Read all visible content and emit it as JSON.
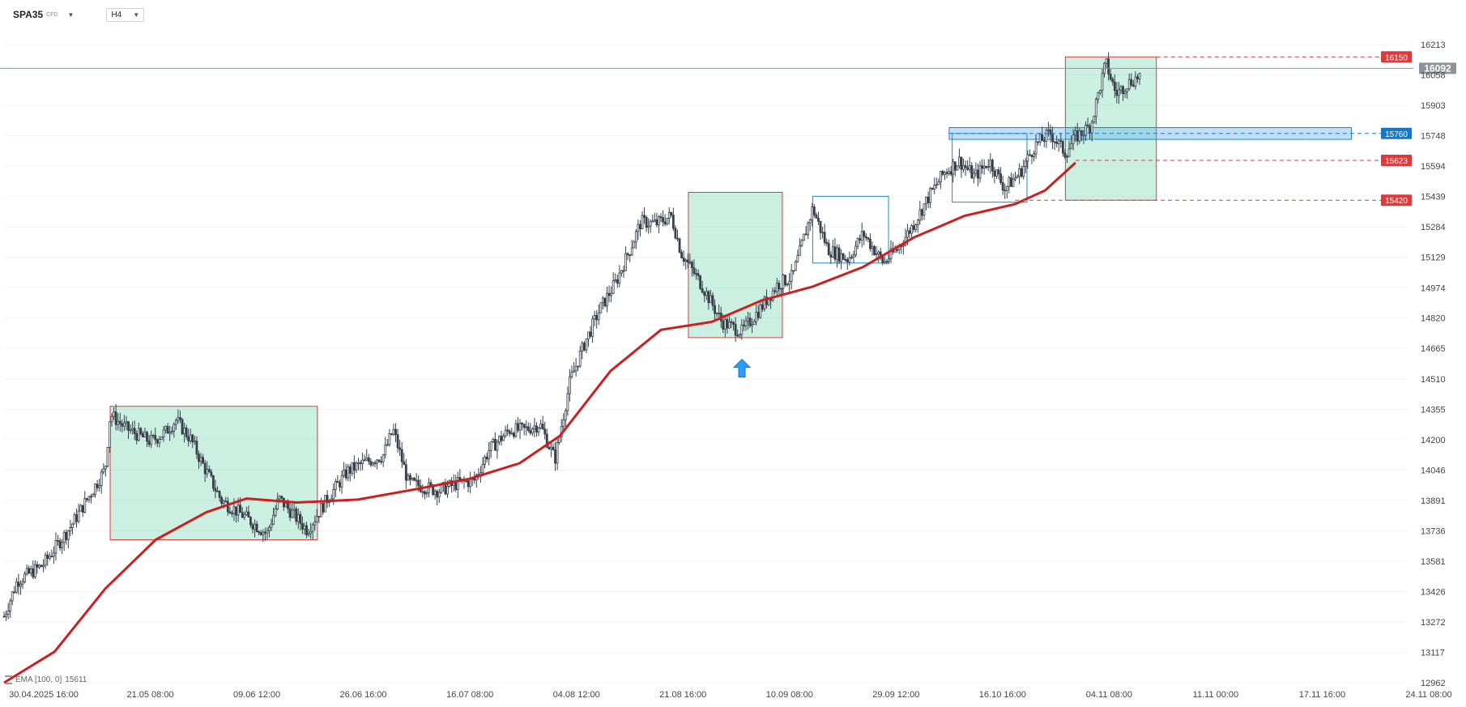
{
  "toolbar": {
    "symbol": "SPA35",
    "symbol_type": "CFD",
    "timeframe": "H4"
  },
  "indicator": {
    "label": "EMA [100, 0]",
    "value": "15611"
  },
  "chart_data": {
    "type": "candlestick",
    "ylim": [
      12962,
      16213
    ],
    "y_ticks": [
      16213,
      16058,
      15903,
      15748,
      15594,
      15439,
      15284,
      15129,
      14974,
      14820,
      14665,
      14510,
      14355,
      14200,
      14046,
      13891,
      13736,
      13581,
      13426,
      13272,
      13117,
      12962
    ],
    "x_ticks": [
      "30.04.2025 16:00",
      "21.05 08:00",
      "09.06 12:00",
      "26.06 16:00",
      "16.07 08:00",
      "04.08 12:00",
      "21.08 16:00",
      "10.09 08:00",
      "29.09 12:00",
      "16.10 16:00",
      "04.11 08:00",
      "11.11 00:00",
      "17.11 16:00",
      "24.11 08:00"
    ],
    "series": [
      {
        "indicator": "EMA [100, 0]",
        "color": "#cc1f1f",
        "points": [
          [
            0,
            12962
          ],
          [
            0.05,
            13120
          ],
          [
            0.1,
            13440
          ],
          [
            0.15,
            13690
          ],
          [
            0.2,
            13830
          ],
          [
            0.24,
            13900
          ],
          [
            0.29,
            13880
          ],
          [
            0.35,
            13895
          ],
          [
            0.41,
            13950
          ],
          [
            0.46,
            14000
          ],
          [
            0.51,
            14080
          ],
          [
            0.55,
            14220
          ],
          [
            0.6,
            14550
          ],
          [
            0.65,
            14760
          ],
          [
            0.7,
            14800
          ],
          [
            0.75,
            14910
          ],
          [
            0.8,
            14980
          ],
          [
            0.85,
            15080
          ],
          [
            0.9,
            15230
          ],
          [
            0.95,
            15340
          ],
          [
            1.0,
            15400
          ],
          [
            1.03,
            15470
          ],
          [
            1.06,
            15611
          ]
        ]
      }
    ],
    "price_path": [
      [
        0,
        13300
      ],
      [
        0.013,
        13480
      ],
      [
        0.038,
        13560
      ],
      [
        0.065,
        13750
      ],
      [
        0.085,
        13920
      ],
      [
        0.1,
        14050
      ],
      [
        0.105,
        14330
      ],
      [
        0.12,
        14260
      ],
      [
        0.145,
        14190
      ],
      [
        0.16,
        14240
      ],
      [
        0.17,
        14300
      ],
      [
        0.185,
        14200
      ],
      [
        0.195,
        14090
      ],
      [
        0.215,
        13890
      ],
      [
        0.235,
        13820
      ],
      [
        0.26,
        13720
      ],
      [
        0.272,
        13900
      ],
      [
        0.3,
        13740
      ],
      [
        0.32,
        13900
      ],
      [
        0.34,
        14040
      ],
      [
        0.355,
        14080
      ],
      [
        0.375,
        14120
      ],
      [
        0.385,
        14250
      ],
      [
        0.4,
        13980
      ],
      [
        0.43,
        13940
      ],
      [
        0.45,
        13980
      ],
      [
        0.465,
        13990
      ],
      [
        0.48,
        14150
      ],
      [
        0.5,
        14250
      ],
      [
        0.515,
        14250
      ],
      [
        0.53,
        14280
      ],
      [
        0.545,
        14100
      ],
      [
        0.56,
        14500
      ],
      [
        0.575,
        14700
      ],
      [
        0.59,
        14870
      ],
      [
        0.605,
        15000
      ],
      [
        0.62,
        15180
      ],
      [
        0.63,
        15310
      ],
      [
        0.645,
        15300
      ],
      [
        0.66,
        15340
      ],
      [
        0.67,
        15150
      ],
      [
        0.69,
        14990
      ],
      [
        0.71,
        14800
      ],
      [
        0.73,
        14750
      ],
      [
        0.75,
        14880
      ],
      [
        0.765,
        14990
      ],
      [
        0.78,
        15030
      ],
      [
        0.8,
        15380
      ],
      [
        0.815,
        15170
      ],
      [
        0.835,
        15120
      ],
      [
        0.85,
        15250
      ],
      [
        0.87,
        15100
      ],
      [
        0.885,
        15180
      ],
      [
        0.9,
        15300
      ],
      [
        0.915,
        15440
      ],
      [
        0.93,
        15560
      ],
      [
        0.945,
        15620
      ],
      [
        0.96,
        15540
      ],
      [
        0.975,
        15620
      ],
      [
        0.99,
        15480
      ],
      [
        1.005,
        15560
      ],
      [
        1.02,
        15700
      ],
      [
        1.035,
        15760
      ],
      [
        1.05,
        15660
      ],
      [
        1.06,
        15740
      ],
      [
        1.075,
        15800
      ],
      [
        1.09,
        16120
      ],
      [
        1.1,
        15960
      ],
      [
        1.11,
        16010
      ],
      [
        1.125,
        16060
      ]
    ],
    "price_levels": [
      {
        "label": "16150",
        "value": 16150,
        "color": "#e0393b",
        "style": "dashed"
      },
      {
        "label": "16092",
        "value": 16092,
        "color": "#8d9499",
        "style": "solid"
      },
      {
        "label": "15760",
        "value": 15760,
        "color": "#1378c8",
        "style": "dashed"
      },
      {
        "label": "15623",
        "value": 15623,
        "color": "#e0393b",
        "style": "dashed"
      },
      {
        "label": "15420",
        "value": 15420,
        "color": "#e0393b",
        "style": "dashed"
      }
    ],
    "annotations": [
      {
        "kind": "box",
        "style": "green",
        "x": [
          0.105,
          0.31
        ],
        "y": [
          13690,
          14370
        ]
      },
      {
        "kind": "box",
        "style": "green",
        "x": [
          0.677,
          0.77
        ],
        "y": [
          14720,
          15460
        ]
      },
      {
        "kind": "box",
        "style": "blue",
        "x": [
          0.8,
          0.875
        ],
        "y": [
          15100,
          15440
        ]
      },
      {
        "kind": "box",
        "style": "blue",
        "x": [
          0.938,
          1.012
        ],
        "y": [
          15410,
          15760
        ]
      },
      {
        "kind": "box",
        "style": "green",
        "x": [
          1.05,
          1.14
        ],
        "y": [
          15420,
          16150
        ]
      },
      {
        "kind": "box",
        "style": "zone-blue",
        "x": [
          0.935,
          1.333
        ],
        "y": [
          15730,
          15790
        ]
      },
      {
        "kind": "arrow-up",
        "color": "#2c9cff",
        "x": 0.73,
        "y": 14560
      }
    ]
  }
}
